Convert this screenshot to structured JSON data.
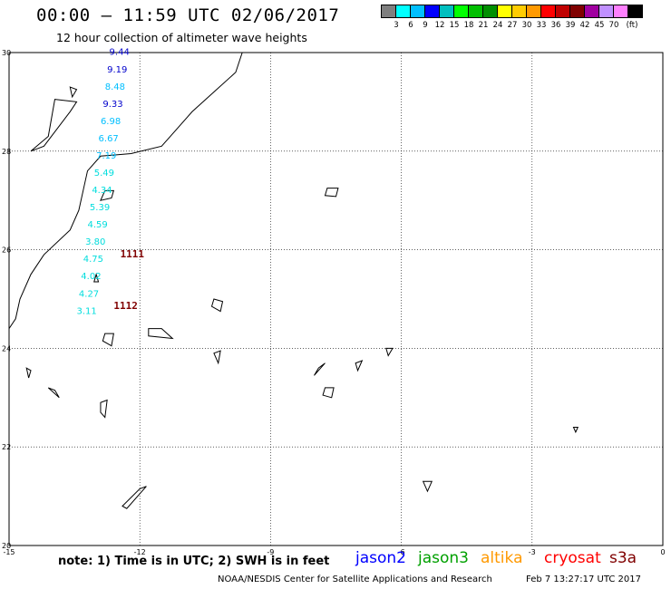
{
  "header": {
    "title": "00:00 – 11:59 UTC 02/06/2017",
    "subtitle": "12 hour collection of altimeter wave heights"
  },
  "colorbar": {
    "colors": [
      "#7f7f7f",
      "#00ffff",
      "#00bfff",
      "#0000ff",
      "#00bfbf",
      "#00ff00",
      "#00bf00",
      "#008f00",
      "#ffff00",
      "#ffcc00",
      "#ff9900",
      "#ff0000",
      "#c00000",
      "#800000",
      "#a000a0",
      "#c090ff",
      "#ff80ff",
      "#000000"
    ],
    "labels": [
      "3",
      "6",
      "9",
      "12",
      "15",
      "18",
      "21",
      "24",
      "27",
      "30",
      "33",
      "36",
      "39",
      "42",
      "45",
      "70",
      "(ft)"
    ]
  },
  "map": {
    "lon_range": [
      -15,
      0
    ],
    "lat_range": [
      20,
      30
    ],
    "lon_ticks": [
      "-15",
      "-12",
      "-9",
      "-6",
      "-3",
      "0"
    ],
    "lat_ticks": [
      "30",
      "28",
      "26",
      "24",
      "22",
      "20"
    ],
    "track_points": [
      {
        "label": "9.44",
        "lon": -12.7,
        "lat": 29.95,
        "color": "#0000cc"
      },
      {
        "label": "9.19",
        "lon": -12.75,
        "lat": 29.6,
        "color": "#0000cc"
      },
      {
        "label": "8.48",
        "lon": -12.8,
        "lat": 29.25,
        "color": "#00bfff"
      },
      {
        "label": "9.33",
        "lon": -12.85,
        "lat": 28.9,
        "color": "#0000cc"
      },
      {
        "label": "6.98",
        "lon": -12.9,
        "lat": 28.55,
        "color": "#00bfff"
      },
      {
        "label": "6.67",
        "lon": -12.95,
        "lat": 28.2,
        "color": "#00bfff"
      },
      {
        "label": "7.19",
        "lon": -13.0,
        "lat": 27.85,
        "color": "#00bfff"
      },
      {
        "label": "5.49",
        "lon": -13.05,
        "lat": 27.5,
        "color": "#00dddd"
      },
      {
        "label": "4.34",
        "lon": -13.1,
        "lat": 27.15,
        "color": "#00dddd"
      },
      {
        "label": "5.39",
        "lon": -13.15,
        "lat": 26.8,
        "color": "#00dddd"
      },
      {
        "label": "4.59",
        "lon": -13.2,
        "lat": 26.45,
        "color": "#00dddd"
      },
      {
        "label": "3.80",
        "lon": -13.25,
        "lat": 26.1,
        "color": "#00dddd"
      },
      {
        "label": "4.75",
        "lon": -13.3,
        "lat": 25.75,
        "color": "#00dddd"
      },
      {
        "label": "4.02",
        "lon": -13.35,
        "lat": 25.4,
        "color": "#00dddd"
      },
      {
        "label": "4.27",
        "lon": -13.4,
        "lat": 25.05,
        "color": "#00dddd"
      },
      {
        "label": "3.11",
        "lon": -13.45,
        "lat": 24.7,
        "color": "#00dddd"
      }
    ],
    "pass_labels": [
      {
        "label": "1111",
        "lon": -12.45,
        "lat": 25.85,
        "color": "#800000"
      },
      {
        "label": "1112",
        "lon": -12.6,
        "lat": 24.8,
        "color": "#800000"
      }
    ]
  },
  "footer": {
    "note": "note: 1) Time is in UTC; 2) SWH is in feet",
    "satellites": [
      {
        "name": "jason2",
        "color": "#0000ff"
      },
      {
        "name": "jason3",
        "color": "#00a000"
      },
      {
        "name": "altika",
        "color": "#ff9900"
      },
      {
        "name": "cryosat",
        "color": "#ff0000"
      },
      {
        "name": "s3a",
        "color": "#800000"
      }
    ],
    "credit": "NOAA/NESDIS Center for Satellite Applications and Research",
    "timestamp": "Feb  7 13:27:17 UTC 2017"
  }
}
